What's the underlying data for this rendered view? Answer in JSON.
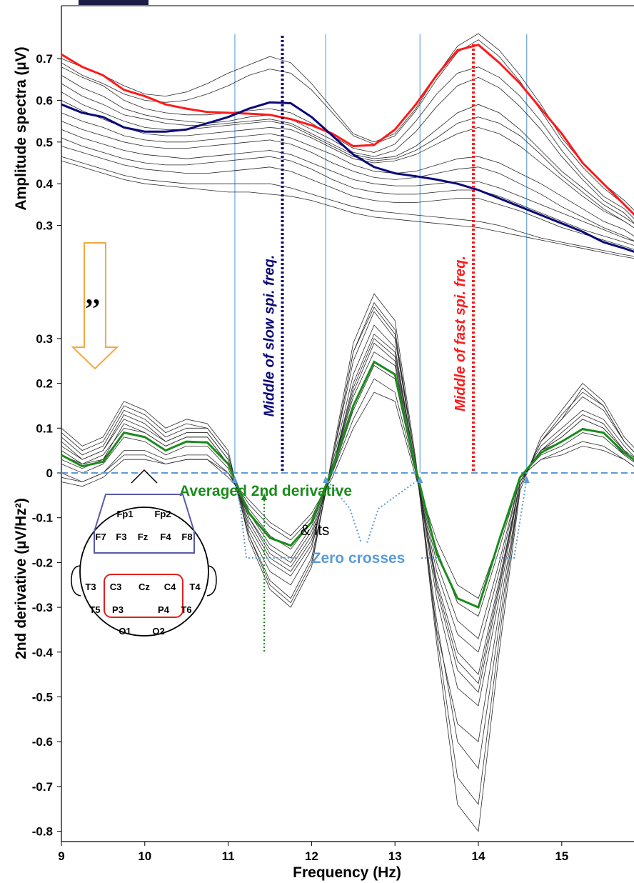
{
  "colors": {
    "red_series": "#ff1a1a",
    "blue_series": "#0a0a7a",
    "gray_traces": "#2b2b2b",
    "average": "#1a8c1a",
    "zero_line": "#5b9bd5",
    "arrow": "#f5a742",
    "montage_frontal": "#5a5aa8",
    "montage_central": "#e02020"
  },
  "chart_data": [
    {
      "type": "line",
      "ylabel": "Amplitude spectra (µV)",
      "xlim": [
        9,
        15.9
      ],
      "ylim": [
        0.2,
        0.8
      ],
      "y_ticks": [
        "0.7",
        "0.6",
        "0.5",
        "0.4",
        "0.3"
      ],
      "x": [
        9.0,
        9.25,
        9.5,
        9.75,
        10.0,
        10.25,
        10.5,
        10.75,
        11.0,
        11.25,
        11.5,
        11.75,
        12.0,
        12.25,
        12.5,
        12.75,
        13.0,
        13.25,
        13.5,
        13.75,
        14.0,
        14.25,
        14.5,
        14.75,
        15.0,
        15.25,
        15.5,
        15.75,
        15.9
      ],
      "series": [
        {
          "color": "red",
          "values": [
            0.71,
            0.68,
            0.66,
            0.625,
            0.61,
            0.59,
            0.58,
            0.572,
            0.57,
            0.568,
            0.565,
            0.555,
            0.54,
            0.52,
            0.49,
            0.493,
            0.53,
            0.59,
            0.66,
            0.72,
            0.733,
            0.69,
            0.64,
            0.58,
            0.52,
            0.45,
            0.4,
            0.35,
            0.32
          ]
        },
        {
          "color": "blue",
          "values": [
            0.59,
            0.57,
            0.56,
            0.535,
            0.525,
            0.525,
            0.53,
            0.545,
            0.56,
            0.58,
            0.595,
            0.593,
            0.56,
            0.515,
            0.47,
            0.44,
            0.425,
            0.418,
            0.41,
            0.4,
            0.385,
            0.365,
            0.345,
            0.325,
            0.305,
            0.285,
            0.26,
            0.245,
            0.235
          ]
        }
      ],
      "gray_traces": [
        [
          0.7,
          0.68,
          0.66,
          0.635,
          0.615,
          0.61,
          0.62,
          0.64,
          0.665,
          0.685,
          0.705,
          0.69,
          0.64,
          0.58,
          0.52,
          0.5,
          0.52,
          0.58,
          0.66,
          0.73,
          0.76,
          0.72,
          0.66,
          0.59,
          0.51,
          0.45,
          0.4,
          0.36,
          0.33
        ],
        [
          0.69,
          0.66,
          0.64,
          0.615,
          0.6,
          0.595,
          0.6,
          0.615,
          0.635,
          0.66,
          0.675,
          0.665,
          0.625,
          0.57,
          0.515,
          0.495,
          0.515,
          0.575,
          0.65,
          0.715,
          0.745,
          0.705,
          0.645,
          0.575,
          0.5,
          0.44,
          0.39,
          0.35,
          0.32
        ],
        [
          0.68,
          0.655,
          0.635,
          0.6,
          0.58,
          0.57,
          0.565,
          0.565,
          0.57,
          0.575,
          0.58,
          0.57,
          0.545,
          0.515,
          0.485,
          0.475,
          0.495,
          0.55,
          0.615,
          0.665,
          0.68,
          0.655,
          0.61,
          0.55,
          0.48,
          0.42,
          0.37,
          0.34,
          0.31
        ],
        [
          0.66,
          0.63,
          0.61,
          0.58,
          0.565,
          0.555,
          0.55,
          0.545,
          0.55,
          0.56,
          0.565,
          0.555,
          0.53,
          0.505,
          0.475,
          0.465,
          0.48,
          0.525,
          0.585,
          0.635,
          0.655,
          0.63,
          0.585,
          0.53,
          0.465,
          0.41,
          0.36,
          0.33,
          0.3
        ],
        [
          0.64,
          0.61,
          0.59,
          0.565,
          0.555,
          0.545,
          0.54,
          0.54,
          0.545,
          0.55,
          0.555,
          0.545,
          0.52,
          0.495,
          0.47,
          0.46,
          0.465,
          0.49,
          0.53,
          0.57,
          0.59,
          0.57,
          0.53,
          0.48,
          0.43,
          0.39,
          0.35,
          0.32,
          0.3
        ],
        [
          0.62,
          0.59,
          0.57,
          0.55,
          0.535,
          0.53,
          0.53,
          0.535,
          0.54,
          0.545,
          0.55,
          0.54,
          0.515,
          0.49,
          0.465,
          0.455,
          0.46,
          0.48,
          0.51,
          0.545,
          0.56,
          0.545,
          0.515,
          0.47,
          0.42,
          0.38,
          0.34,
          0.31,
          0.29
        ],
        [
          0.6,
          0.575,
          0.555,
          0.535,
          0.52,
          0.515,
          0.515,
          0.52,
          0.525,
          0.53,
          0.535,
          0.53,
          0.51,
          0.485,
          0.46,
          0.45,
          0.455,
          0.47,
          0.495,
          0.52,
          0.535,
          0.52,
          0.49,
          0.45,
          0.41,
          0.37,
          0.335,
          0.31,
          0.29
        ],
        [
          0.57,
          0.55,
          0.535,
          0.515,
          0.505,
          0.5,
          0.5,
          0.505,
          0.51,
          0.515,
          0.52,
          0.51,
          0.49,
          0.47,
          0.445,
          0.43,
          0.425,
          0.43,
          0.445,
          0.46,
          0.465,
          0.45,
          0.425,
          0.4,
          0.37,
          0.34,
          0.31,
          0.29,
          0.27
        ],
        [
          0.55,
          0.53,
          0.515,
          0.5,
          0.49,
          0.485,
          0.485,
          0.49,
          0.495,
          0.5,
          0.505,
          0.495,
          0.475,
          0.45,
          0.43,
          0.415,
          0.41,
          0.415,
          0.425,
          0.435,
          0.44,
          0.425,
          0.4,
          0.375,
          0.345,
          0.32,
          0.295,
          0.275,
          0.26
        ],
        [
          0.53,
          0.51,
          0.495,
          0.48,
          0.47,
          0.465,
          0.46,
          0.465,
          0.47,
          0.475,
          0.48,
          0.47,
          0.45,
          0.43,
          0.41,
          0.4,
          0.395,
          0.395,
          0.4,
          0.405,
          0.405,
          0.39,
          0.37,
          0.35,
          0.33,
          0.31,
          0.29,
          0.27,
          0.26
        ],
        [
          0.51,
          0.49,
          0.475,
          0.46,
          0.45,
          0.445,
          0.445,
          0.45,
          0.455,
          0.46,
          0.465,
          0.455,
          0.435,
          0.41,
          0.39,
          0.38,
          0.375,
          0.375,
          0.38,
          0.385,
          0.385,
          0.37,
          0.35,
          0.33,
          0.31,
          0.29,
          0.275,
          0.26,
          0.25
        ],
        [
          0.49,
          0.475,
          0.46,
          0.445,
          0.435,
          0.43,
          0.425,
          0.425,
          0.43,
          0.435,
          0.44,
          0.43,
          0.41,
          0.39,
          0.37,
          0.36,
          0.355,
          0.355,
          0.36,
          0.365,
          0.365,
          0.35,
          0.335,
          0.315,
          0.295,
          0.28,
          0.265,
          0.25,
          0.24
        ],
        [
          0.465,
          0.45,
          0.435,
          0.42,
          0.41,
          0.405,
          0.4,
          0.4,
          0.4,
          0.4,
          0.4,
          0.39,
          0.375,
          0.36,
          0.345,
          0.335,
          0.33,
          0.325,
          0.32,
          0.315,
          0.31,
          0.3,
          0.285,
          0.27,
          0.26,
          0.25,
          0.24,
          0.23,
          0.225
        ],
        [
          0.455,
          0.44,
          0.425,
          0.41,
          0.4,
          0.395,
          0.39,
          0.385,
          0.38,
          0.38,
          0.375,
          0.37,
          0.36,
          0.345,
          0.33,
          0.32,
          0.315,
          0.31,
          0.305,
          0.3,
          0.295,
          0.285,
          0.275,
          0.265,
          0.255,
          0.245,
          0.235,
          0.225,
          0.22
        ]
      ],
      "vertical_lines_hz": [
        11.08,
        12.17,
        13.3,
        14.58
      ],
      "annotations": [
        {
          "text": "Middle of slow spi. freq.",
          "x_hz": 11.65,
          "color": "blue"
        },
        {
          "text": "Middle of fast spi. freq.",
          "x_hz": 13.94,
          "color": "red"
        }
      ]
    },
    {
      "type": "line",
      "xlabel": "Frequency (Hz)",
      "ylabel": "2nd derivative (µV/Hz²)",
      "xlim": [
        9,
        15.9
      ],
      "ylim": [
        -0.82,
        0.33
      ],
      "x_ticks": [
        "9",
        "10",
        "11",
        "12",
        "13",
        "14",
        "15"
      ],
      "y_ticks": [
        "0.3",
        "0.2",
        "0.1",
        "0",
        "-0.1",
        "-0.2",
        "-0.3",
        "-0.4",
        "-0.5",
        "-0.6",
        "-0.7",
        "-0.8"
      ],
      "x": [
        9.0,
        9.25,
        9.5,
        9.75,
        10.0,
        10.25,
        10.5,
        10.75,
        11.0,
        11.25,
        11.5,
        11.75,
        12.0,
        12.25,
        12.5,
        12.75,
        13.0,
        13.25,
        13.5,
        13.75,
        14.0,
        14.25,
        14.5,
        14.75,
        15.0,
        15.25,
        15.5,
        15.75,
        15.9
      ],
      "average": [
        0.04,
        0.015,
        0.025,
        0.09,
        0.08,
        0.05,
        0.07,
        0.068,
        0.02,
        -0.09,
        -0.145,
        -0.162,
        -0.11,
        0.01,
        0.15,
        0.248,
        0.22,
        0.01,
        -0.18,
        -0.28,
        -0.3,
        -0.15,
        -0.01,
        0.045,
        0.07,
        0.098,
        0.09,
        0.045,
        0.025
      ],
      "gray_traces": [
        [
          0.06,
          0.03,
          0.05,
          0.12,
          0.1,
          0.07,
          0.09,
          0.09,
          0.03,
          -0.12,
          -0.2,
          -0.23,
          -0.16,
          0.02,
          0.22,
          0.33,
          0.28,
          0.01,
          -0.28,
          -0.48,
          -0.52,
          -0.28,
          -0.02,
          0.06,
          0.1,
          0.14,
          0.12,
          0.06,
          0.03
        ],
        [
          0.02,
          0.0,
          0.02,
          0.08,
          0.07,
          0.04,
          0.06,
          0.06,
          0.01,
          -0.1,
          -0.17,
          -0.2,
          -0.13,
          0.01,
          0.18,
          0.29,
          0.25,
          0.0,
          -0.24,
          -0.4,
          -0.45,
          -0.24,
          -0.02,
          0.05,
          0.08,
          0.12,
          0.1,
          0.05,
          0.02
        ],
        [
          0.08,
          0.04,
          0.06,
          0.14,
          0.12,
          0.08,
          0.1,
          0.1,
          0.04,
          -0.13,
          -0.22,
          -0.25,
          -0.17,
          0.03,
          0.25,
          0.36,
          0.3,
          0.02,
          -0.33,
          -0.6,
          -0.66,
          -0.34,
          -0.03,
          0.07,
          0.12,
          0.17,
          0.14,
          0.07,
          0.04
        ],
        [
          0.0,
          -0.02,
          0.0,
          0.05,
          0.05,
          0.03,
          0.04,
          0.04,
          0.0,
          -0.08,
          -0.14,
          -0.17,
          -0.11,
          0.0,
          0.14,
          0.24,
          0.21,
          0.0,
          -0.2,
          -0.33,
          -0.37,
          -0.2,
          -0.01,
          0.04,
          0.06,
          0.09,
          0.08,
          0.04,
          0.02
        ],
        [
          0.1,
          0.06,
          0.08,
          0.16,
          0.14,
          0.1,
          0.12,
          0.11,
          0.05,
          -0.15,
          -0.26,
          -0.3,
          -0.21,
          0.04,
          0.29,
          0.4,
          0.34,
          0.03,
          -0.38,
          -0.74,
          -0.8,
          -0.4,
          -0.04,
          0.08,
          0.14,
          0.2,
          0.16,
          0.08,
          0.05
        ],
        [
          -0.02,
          -0.03,
          -0.01,
          0.03,
          0.03,
          0.02,
          0.03,
          0.03,
          -0.01,
          -0.06,
          -0.11,
          -0.14,
          -0.09,
          -0.01,
          0.1,
          0.18,
          0.16,
          -0.01,
          -0.15,
          -0.25,
          -0.28,
          -0.15,
          -0.01,
          0.03,
          0.04,
          0.06,
          0.05,
          0.03,
          0.01
        ],
        [
          0.05,
          0.02,
          0.04,
          0.1,
          0.09,
          0.06,
          0.08,
          0.08,
          0.02,
          -0.11,
          -0.19,
          -0.22,
          -0.15,
          0.01,
          0.2,
          0.31,
          0.27,
          0.01,
          -0.26,
          -0.44,
          -0.49,
          -0.26,
          -0.02,
          0.05,
          0.09,
          0.13,
          0.11,
          0.05,
          0.03
        ],
        [
          0.03,
          0.01,
          0.03,
          0.09,
          0.08,
          0.05,
          0.07,
          0.07,
          0.02,
          -0.09,
          -0.16,
          -0.19,
          -0.12,
          0.01,
          0.17,
          0.27,
          0.24,
          0.0,
          -0.22,
          -0.36,
          -0.4,
          -0.22,
          -0.01,
          0.05,
          0.07,
          0.1,
          0.09,
          0.04,
          0.02
        ],
        [
          0.07,
          0.03,
          0.05,
          0.13,
          0.11,
          0.07,
          0.09,
          0.09,
          0.03,
          -0.14,
          -0.24,
          -0.28,
          -0.19,
          0.03,
          0.27,
          0.38,
          0.32,
          0.02,
          -0.36,
          -0.68,
          -0.74,
          -0.37,
          -0.03,
          0.07,
          0.13,
          0.18,
          0.15,
          0.07,
          0.04
        ],
        [
          -0.01,
          -0.02,
          0.0,
          0.04,
          0.04,
          0.02,
          0.03,
          0.03,
          0.0,
          -0.07,
          -0.12,
          -0.15,
          -0.1,
          0.0,
          0.12,
          0.21,
          0.18,
          0.0,
          -0.17,
          -0.29,
          -0.32,
          -0.17,
          -0.01,
          0.03,
          0.05,
          0.07,
          0.06,
          0.03,
          0.01
        ],
        [
          0.09,
          0.05,
          0.07,
          0.15,
          0.13,
          0.09,
          0.11,
          0.1,
          0.04,
          -0.14,
          -0.25,
          -0.29,
          -0.2,
          0.03,
          0.27,
          0.37,
          0.31,
          0.02,
          -0.35,
          -0.56,
          -0.6,
          -0.31,
          -0.03,
          0.07,
          0.12,
          0.19,
          0.15,
          0.07,
          0.04
        ],
        [
          0.04,
          0.02,
          0.03,
          0.11,
          0.09,
          0.06,
          0.08,
          0.08,
          0.02,
          -0.1,
          -0.18,
          -0.21,
          -0.14,
          0.01,
          0.19,
          0.3,
          0.26,
          0.01,
          -0.25,
          -0.42,
          -0.47,
          -0.25,
          -0.02,
          0.05,
          0.08,
          0.12,
          0.1,
          0.05,
          0.02
        ]
      ],
      "annotations": [
        {
          "text": "Averaged 2nd derivative",
          "color": "green"
        },
        {
          "text": "& its",
          "color": "black"
        },
        {
          "text": "Zero crosses",
          "color": "lightblue"
        },
        {
          "text": ",,",
          "color": "black"
        }
      ]
    }
  ],
  "montage": {
    "row1": [
      "Fp1",
      "Fp2"
    ],
    "row2": [
      "F7",
      "F3",
      "Fz",
      "F4",
      "F8"
    ],
    "row3": [
      "T3",
      "C3",
      "Cz",
      "C4",
      "T4"
    ],
    "row4": [
      "T5",
      "P3",
      "P4",
      "T6"
    ],
    "row5": [
      "O1",
      "O2"
    ]
  }
}
